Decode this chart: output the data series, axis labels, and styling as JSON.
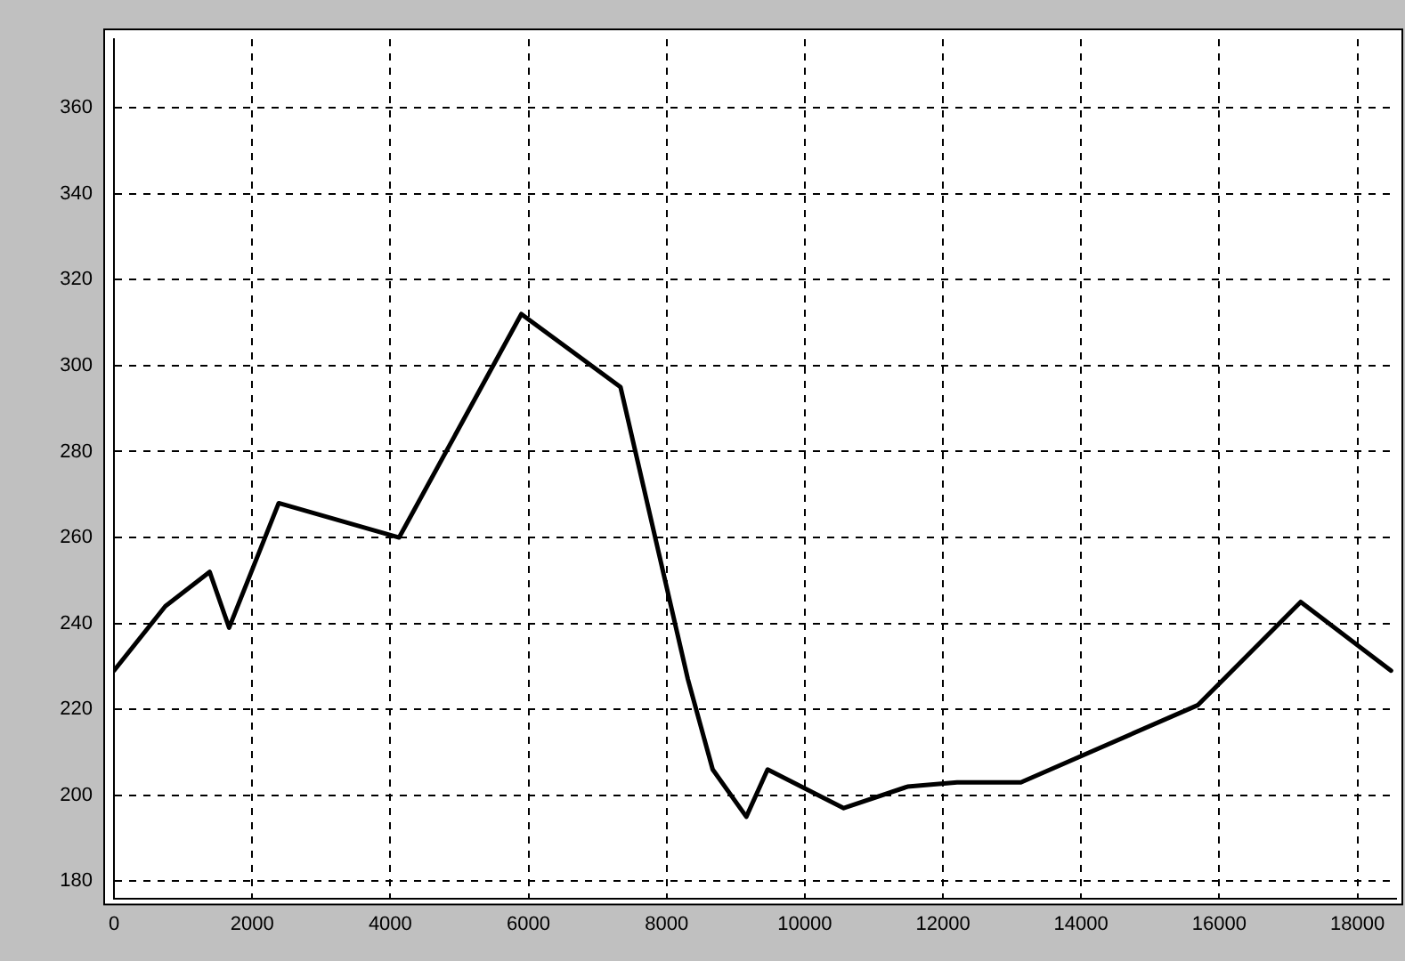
{
  "chart_data": {
    "type": "line",
    "x": [
      0,
      744,
      1385,
      1667,
      2385,
      4128,
      5897,
      7333,
      8308,
      8667,
      9154,
      9462,
      10564,
      11487,
      12205,
      13128,
      15692,
      17179,
      18487
    ],
    "series": [
      {
        "color": "#000000",
        "values": [
          229,
          244,
          252,
          239,
          268,
          260,
          312,
          295,
          227,
          206,
          195,
          206,
          197,
          202,
          203,
          203,
          221,
          245,
          229
        ]
      }
    ],
    "xlim": [
      0,
      18560
    ],
    "xticks": [
      0,
      2000,
      4000,
      6000,
      8000,
      10000,
      12000,
      14000,
      16000,
      18000
    ],
    "ylim": [
      176,
      376
    ],
    "yticks": [
      180,
      200,
      220,
      240,
      260,
      280,
      300,
      320,
      340,
      360
    ],
    "grid": true,
    "legend": false,
    "marker": "none",
    "line_style": "solid"
  }
}
